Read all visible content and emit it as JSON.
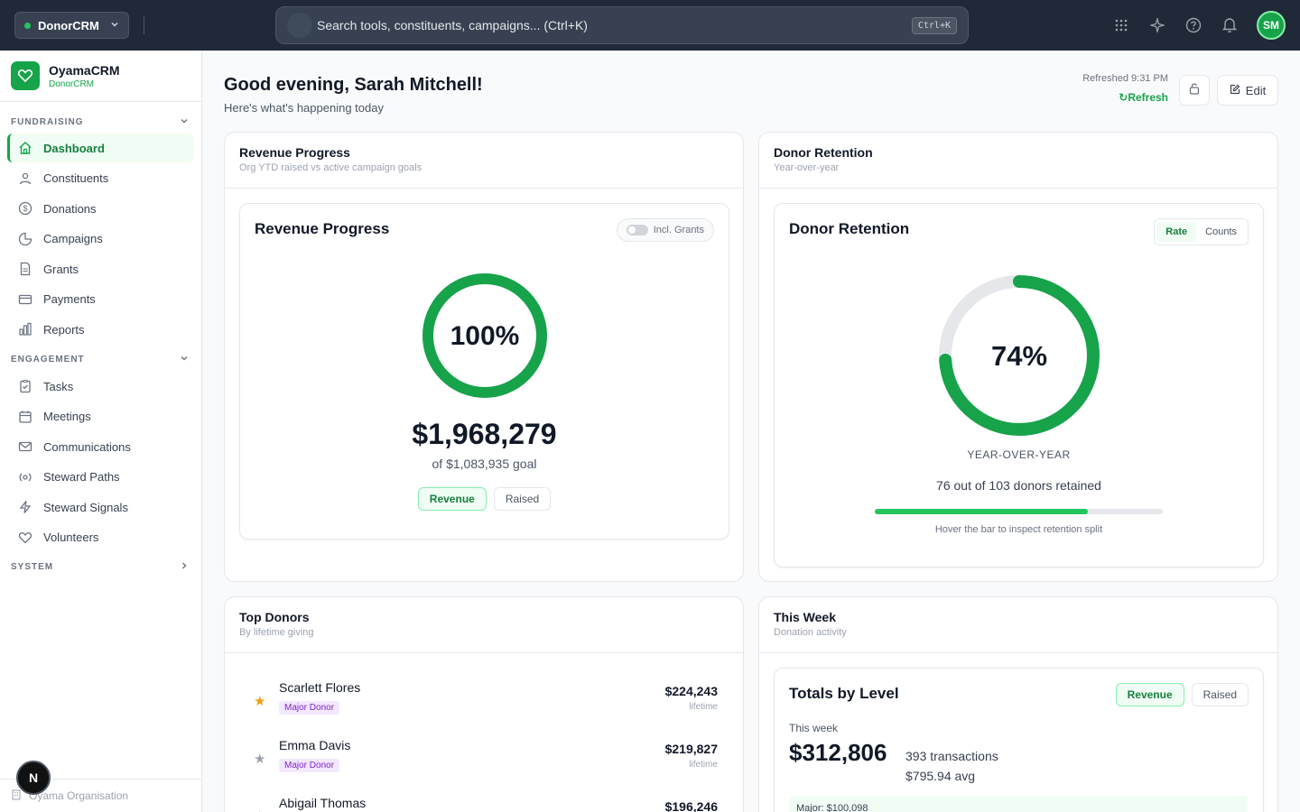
{
  "topbar": {
    "app_switch_label": "DonorCRM",
    "search_placeholder": "Search tools, constituents, campaigns... (Ctrl+K)",
    "search_shortcut": "Ctrl+K",
    "avatar_initials": "SM",
    "accent_color": "#16a34a"
  },
  "sidebar": {
    "brand_name": "OyamaCRM",
    "brand_sub": "DonorCRM",
    "sections": {
      "fundraising": "FUNDRAISING",
      "engagement": "ENGAGEMENT",
      "system": "SYSTEM"
    },
    "fundraising_items": [
      {
        "label": "Dashboard",
        "icon": "home-icon",
        "active": true
      },
      {
        "label": "Constituents",
        "icon": "users-icon"
      },
      {
        "label": "Donations",
        "icon": "dollar-icon"
      },
      {
        "label": "Campaigns",
        "icon": "pie-icon"
      },
      {
        "label": "Grants",
        "icon": "file-icon"
      },
      {
        "label": "Payments",
        "icon": "card-icon"
      },
      {
        "label": "Reports",
        "icon": "bar-chart-icon"
      }
    ],
    "engagement_items": [
      {
        "label": "Tasks",
        "icon": "clipboard-icon"
      },
      {
        "label": "Meetings",
        "icon": "calendar-icon"
      },
      {
        "label": "Communications",
        "icon": "mail-icon"
      },
      {
        "label": "Steward Paths",
        "icon": "radio-icon"
      },
      {
        "label": "Steward Signals",
        "icon": "bolt-icon"
      },
      {
        "label": "Volunteers",
        "icon": "heart-icon"
      }
    ],
    "footer_org": "Oyama Organisation",
    "floating_badge": "N"
  },
  "header": {
    "greeting": "Good evening, Sarah Mitchell!",
    "subtitle": "Here's what's happening today",
    "refreshed": "Refreshed 9:31 PM",
    "refresh_label": "Refresh",
    "edit_label": "Edit"
  },
  "revenue_card": {
    "title": "Revenue Progress",
    "subtitle": "Org YTD raised vs active campaign goals",
    "inner_title": "Revenue Progress",
    "toggle_label": "Incl. Grants",
    "percent_label": "100%",
    "progress_fraction": 1.0,
    "amount": "$1,968,279",
    "goal_text": "of $1,083,935 goal",
    "btn_revenue": "Revenue",
    "btn_raised": "Raised"
  },
  "retention_card": {
    "title": "Donor Retention",
    "subtitle": "Year-over-year",
    "inner_title": "Donor Retention",
    "seg_rate": "Rate",
    "seg_counts": "Counts",
    "percent_label": "74%",
    "progress_fraction": 0.74,
    "yoy_label": "YEAR-OVER-YEAR",
    "retained_text": "76 out of 103 donors retained",
    "hint": "Hover the bar to inspect retention split"
  },
  "top_donors": {
    "title": "Top Donors",
    "subtitle": "By lifetime giving",
    "lifetime_label": "lifetime",
    "donors": [
      {
        "name": "Scarlett Flores",
        "badge": "Major Donor",
        "amount": "$224,243",
        "star_color": "#f59e0b"
      },
      {
        "name": "Emma Davis",
        "badge": "Major Donor",
        "amount": "$219,827",
        "star_color": "#9ca3af"
      },
      {
        "name": "Abigail Thomas",
        "badge": "",
        "amount": "$196,246",
        "star_color": "#ea580c"
      }
    ]
  },
  "this_week": {
    "title": "This Week",
    "subtitle": "Donation activity",
    "inner_title": "Totals by Level",
    "btn_revenue": "Revenue",
    "btn_raised": "Raised",
    "period": "This week",
    "total": "$312,806",
    "transactions": "393 transactions",
    "avg": "$795.94 avg",
    "major_row": "Major: $100,098"
  }
}
